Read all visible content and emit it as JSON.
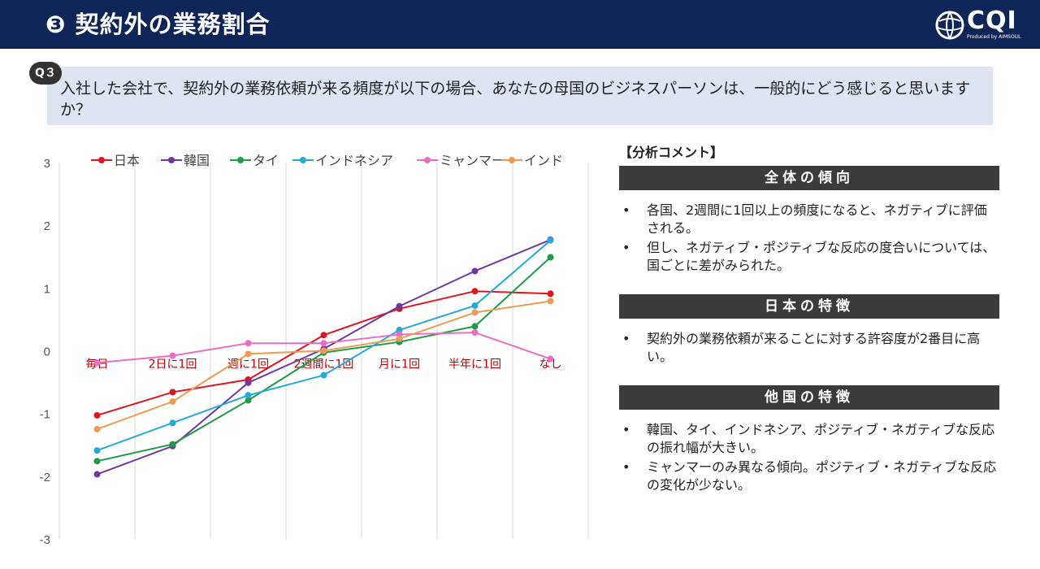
{
  "header": {
    "title": "❸ 契約外の業務割合",
    "logo_text": "CQI",
    "logo_sub": "Produced by AIMSOUL"
  },
  "question": {
    "badge": "Q３",
    "text": "入社した会社で、契約外の業務依頼が来る頻度が以下の場合、あなたの母国のビジネスパーソンは、一般的にどう感じると思いますか？"
  },
  "chart_data": {
    "type": "line",
    "categories": [
      "毎日",
      "2日に1回",
      "週に1回",
      "2週間に1回",
      "月に1回",
      "半年に1回",
      "なし"
    ],
    "ylim": [
      -3,
      3
    ],
    "yticks": [
      -3,
      -2,
      -1,
      0,
      1,
      2,
      3
    ],
    "grid": "vertical",
    "legend": "top",
    "series": [
      {
        "name": "日本",
        "color": "#e0161f",
        "values": [
          -1.03,
          -0.66,
          -0.46,
          0.25,
          0.67,
          0.95,
          0.91
        ]
      },
      {
        "name": "韓国",
        "color": "#6e38a0",
        "values": [
          -1.97,
          -1.52,
          -0.51,
          0.03,
          0.71,
          1.27,
          1.77
        ]
      },
      {
        "name": "タイ",
        "color": "#1f9a4a",
        "values": [
          -1.76,
          -1.49,
          -0.79,
          -0.03,
          0.14,
          0.39,
          1.49
        ]
      },
      {
        "name": "インドネシア",
        "color": "#26a9d6",
        "values": [
          -1.59,
          -1.15,
          -0.71,
          -0.39,
          0.33,
          0.72,
          1.76
        ]
      },
      {
        "name": "ミャンマー",
        "color": "#ea6fc4",
        "values": [
          -0.19,
          -0.08,
          0.12,
          0.12,
          0.26,
          0.29,
          -0.13
        ]
      },
      {
        "name": "インド",
        "color": "#ef9a55",
        "values": [
          -1.25,
          -0.81,
          -0.05,
          0.0,
          0.19,
          0.61,
          0.79
        ]
      }
    ]
  },
  "comments": {
    "heading": "【分析コメント】",
    "sections": [
      {
        "title": "全体の傾向",
        "items": [
          "各国、2週間に1回以上の頻度になると、ネガティブに評価される。",
          "但し、ネガティブ・ポジティブな反応の度合いについては、国ごとに差がみられた。"
        ]
      },
      {
        "title": "日本の特徴",
        "items": [
          "契約外の業務依頼が来ることに対する許容度が2番目に高い。"
        ]
      },
      {
        "title": "他国の特徴",
        "items": [
          "韓国、タイ、インドネシア、ポジティブ・ネガティブな反応の振れ幅が大きい。",
          "ミャンマーのみ異なる傾向。ポジティブ・ネガティブな反応の変化が少ない。"
        ]
      }
    ],
    "bullet": "•"
  }
}
